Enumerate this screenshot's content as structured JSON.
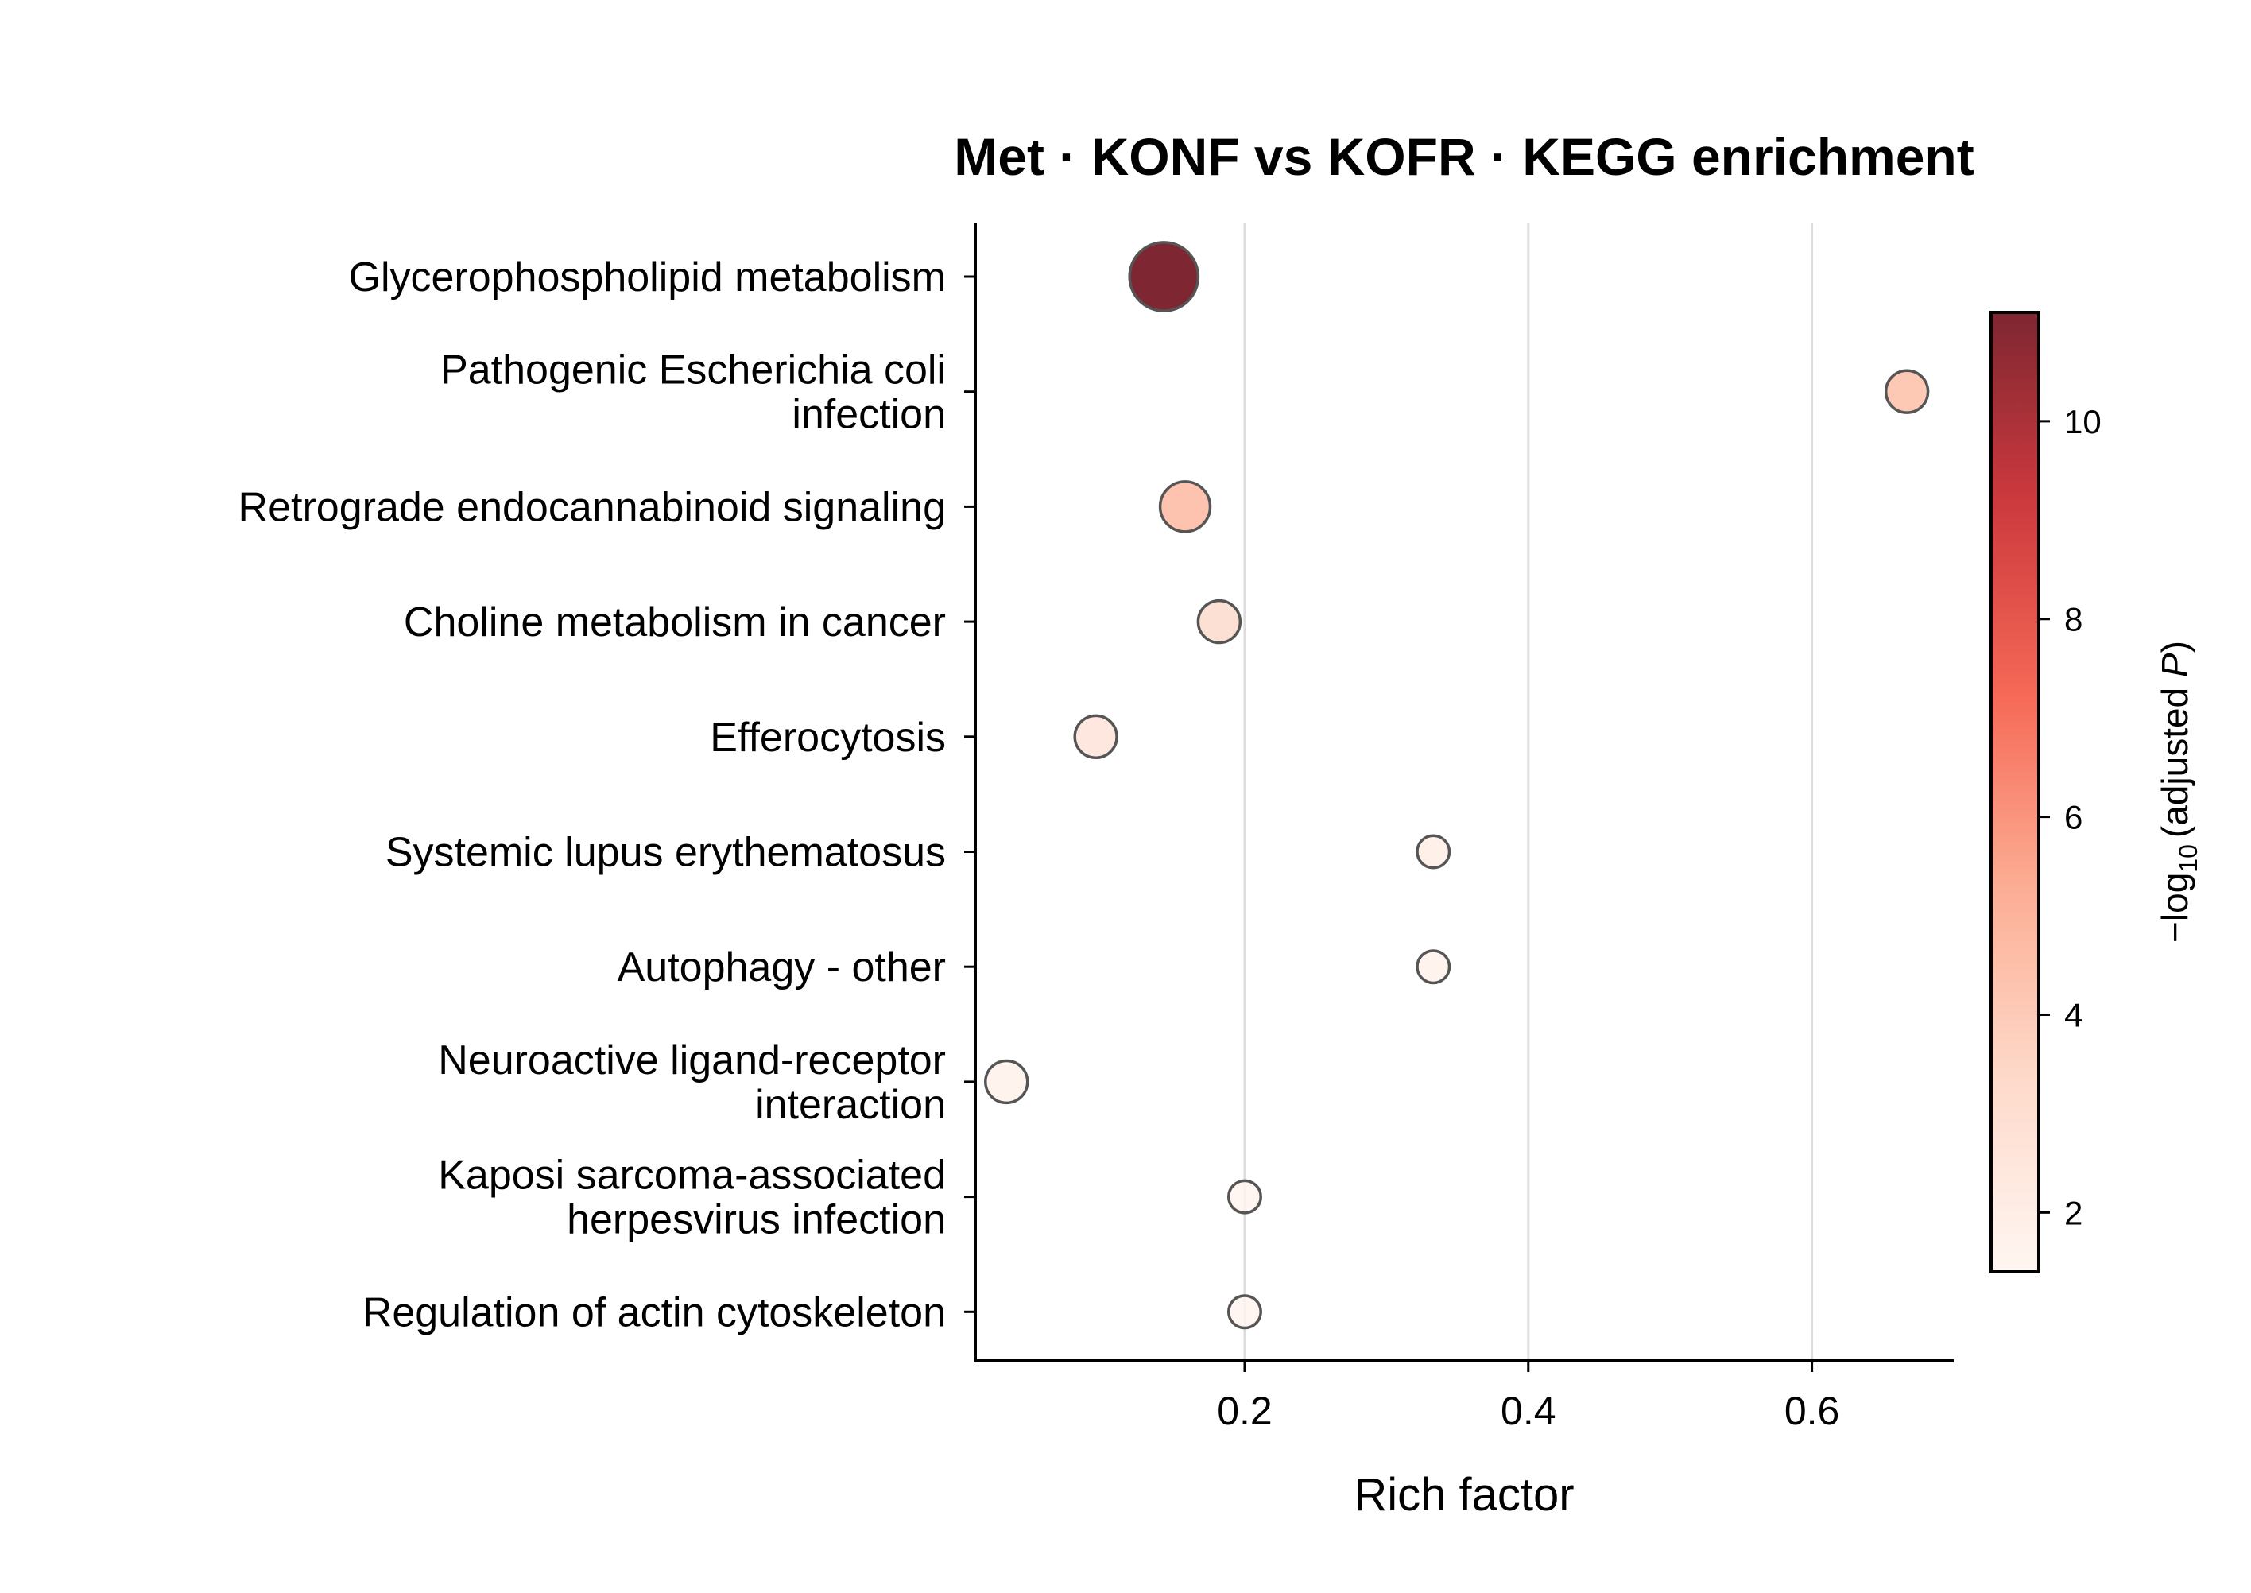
{
  "chart_data": {
    "type": "scatter",
    "title": "Met · KONF vs KOFR · KEGG enrichment",
    "xlabel": "Rich factor",
    "ylabel": "",
    "xlim": [
      0.01,
      0.7
    ],
    "xticks": [
      0.2,
      0.4,
      0.6
    ],
    "xtick_labels": [
      "0.2",
      "0.4",
      "0.6"
    ],
    "grid": "vertical gridlines at x ticks",
    "categories": [
      "Glycerophospholipid metabolism",
      "Pathogenic Escherichia coli infection",
      "Retrograde endocannabinoid signaling",
      "Choline metabolism in cancer",
      "Efferocytosis",
      "Systemic lupus erythematosus",
      "Autophagy - other",
      "Neuroactive ligand-receptor interaction",
      "Kaposi sarcoma-associated herpesvirus infection",
      "Regulation of actin cytoskeleton"
    ],
    "category_label_lines": [
      [
        "Glycerophospholipid metabolism"
      ],
      [
        "Pathogenic Escherichia coli",
        "infection"
      ],
      [
        "Retrograde endocannabinoid signaling"
      ],
      [
        "Choline metabolism in cancer"
      ],
      [
        "Efferocytosis"
      ],
      [
        "Systemic lupus erythematosus"
      ],
      [
        "Autophagy - other"
      ],
      [
        "Neuroactive ligand-receptor",
        "interaction"
      ],
      [
        "Kaposi sarcoma-associated",
        "herpesvirus infection"
      ],
      [
        "Regulation of actin cytoskeleton"
      ]
    ],
    "rich_factor": [
      0.143,
      0.667,
      0.158,
      0.182,
      0.095,
      0.333,
      0.333,
      0.032,
      0.2,
      0.2
    ],
    "neg_log10_padj": [
      11.1,
      4.1,
      4.3,
      2.9,
      2.4,
      1.8,
      1.6,
      1.6,
      1.4,
      1.4
    ],
    "gene_count": [
      6,
      2,
      3,
      2,
      2,
      1,
      1,
      2,
      1,
      1
    ],
    "colorbar": {
      "label_prefix": "−log",
      "label_sub": "10",
      "label_mid": "(adjusted ",
      "label_italic": "P",
      "label_suffix": ")",
      "range": [
        1.4,
        11.1
      ],
      "ticks": [
        2,
        4,
        6,
        8,
        10
      ],
      "tick_labels": [
        "2",
        "4",
        "6",
        "8",
        "10"
      ],
      "colormap": [
        "#fff5f0",
        "#fdd3c1",
        "#fc9f81",
        "#f44f39",
        "#c5171c",
        "#67000d"
      ]
    },
    "marker_edge_color": "#555555",
    "marker_alpha": 0.85
  }
}
